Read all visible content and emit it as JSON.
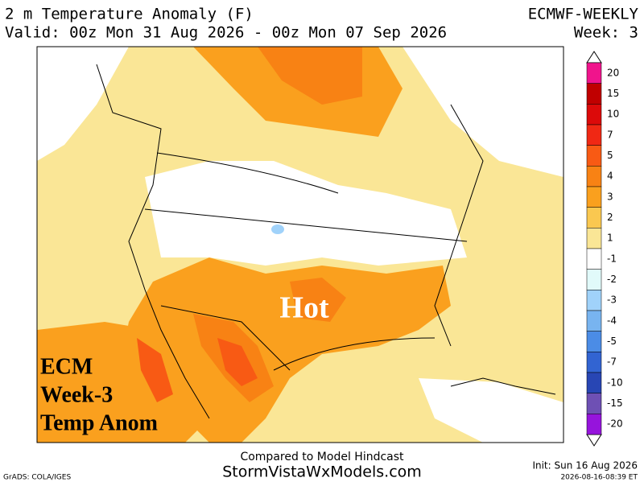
{
  "header": {
    "title": "2 m Temperature Anomaly (F)",
    "model": "ECMWF-WEEKLY",
    "valid": "Valid: 00z Mon 31 Aug 2026 - 00z Mon 07 Sep 2026",
    "week": "Week: 3"
  },
  "map": {
    "annotation": "Hot",
    "overlay": [
      "ECM",
      "Week-3",
      "Temp Anom"
    ]
  },
  "colorbar": {
    "labels": [
      20,
      15,
      10,
      7,
      5,
      4,
      3,
      2,
      1,
      -1,
      -2,
      -3,
      -4,
      -5,
      -7,
      -10,
      -15,
      -20
    ],
    "colors": [
      "#f0148c",
      "#c00000",
      "#dc0a0a",
      "#f02814",
      "#f85a14",
      "#f88214",
      "#faa01e",
      "#fac850",
      "#fae696",
      "#ffffff",
      "#e1fafa",
      "#a0d2fa",
      "#78b4f0",
      "#4b8ce6",
      "#3264d2",
      "#2846b4",
      "#6e50b4",
      "#9614dc"
    ]
  },
  "footer": {
    "note": "Compared to Model Hindcast",
    "site": "StormVistaWxModels.com",
    "init": "Init: Sun 16 Aug 2026",
    "credit": "GrADS: COLA/IGES",
    "timestamp": "2026-08-16-08:39 ET"
  }
}
